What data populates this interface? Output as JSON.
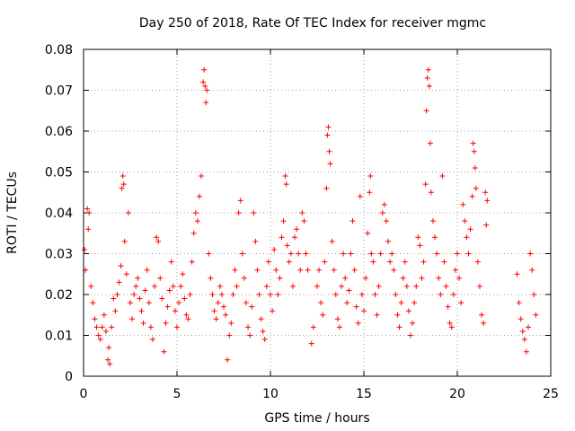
{
  "chart_data": {
    "type": "scatter",
    "title": "Day 250 of 2018, Rate Of TEC Index for receiver mgmc",
    "xlabel": "GPS time / hours",
    "ylabel": "ROTI / TECUs",
    "xlim": [
      0,
      25
    ],
    "ylim": [
      0,
      0.08
    ],
    "x_ticks": [
      0,
      5,
      10,
      15,
      20,
      25
    ],
    "x_tick_labels": [
      "0",
      "5",
      "10",
      "15",
      "20",
      "25"
    ],
    "y_ticks": [
      0,
      0.01,
      0.02,
      0.03,
      0.04,
      0.05,
      0.06,
      0.07,
      0.08
    ],
    "y_tick_labels": [
      "0",
      "0.01",
      "0.02",
      "0.03",
      "0.04",
      "0.05",
      "0.06",
      "0.07",
      "0.08"
    ],
    "grid": true,
    "marker": "+",
    "series": [
      {
        "name": "ROTI",
        "color": "#ff0000",
        "points": [
          [
            0.05,
            0.031
          ],
          [
            0.1,
            0.026
          ],
          [
            0.2,
            0.041
          ],
          [
            0.3,
            0.04
          ],
          [
            0.25,
            0.036
          ],
          [
            0.4,
            0.022
          ],
          [
            0.5,
            0.018
          ],
          [
            0.6,
            0.014
          ],
          [
            0.7,
            0.012
          ],
          [
            0.8,
            0.01
          ],
          [
            0.9,
            0.009
          ],
          [
            1.0,
            0.012
          ],
          [
            1.1,
            0.015
          ],
          [
            1.2,
            0.011
          ],
          [
            1.3,
            0.004
          ],
          [
            1.35,
            0.007
          ],
          [
            1.4,
            0.003
          ],
          [
            1.5,
            0.012
          ],
          [
            1.6,
            0.019
          ],
          [
            1.7,
            0.016
          ],
          [
            1.8,
            0.02
          ],
          [
            1.9,
            0.023
          ],
          [
            2.0,
            0.027
          ],
          [
            2.05,
            0.046
          ],
          [
            2.1,
            0.049
          ],
          [
            2.15,
            0.047
          ],
          [
            2.2,
            0.033
          ],
          [
            2.3,
            0.025
          ],
          [
            2.4,
            0.04
          ],
          [
            2.5,
            0.018
          ],
          [
            2.6,
            0.014
          ],
          [
            2.7,
            0.02
          ],
          [
            2.8,
            0.022
          ],
          [
            2.9,
            0.024
          ],
          [
            3.0,
            0.019
          ],
          [
            3.1,
            0.016
          ],
          [
            3.2,
            0.013
          ],
          [
            3.3,
            0.021
          ],
          [
            3.4,
            0.026
          ],
          [
            3.5,
            0.018
          ],
          [
            3.6,
            0.012
          ],
          [
            3.7,
            0.009
          ],
          [
            3.8,
            0.022
          ],
          [
            3.9,
            0.034
          ],
          [
            4.0,
            0.033
          ],
          [
            4.1,
            0.024
          ],
          [
            4.2,
            0.019
          ],
          [
            4.3,
            0.006
          ],
          [
            4.4,
            0.013
          ],
          [
            4.5,
            0.017
          ],
          [
            4.6,
            0.021
          ],
          [
            4.7,
            0.028
          ],
          [
            4.8,
            0.022
          ],
          [
            4.9,
            0.016
          ],
          [
            5.0,
            0.012
          ],
          [
            5.1,
            0.018
          ],
          [
            5.2,
            0.022
          ],
          [
            5.3,
            0.025
          ],
          [
            5.4,
            0.019
          ],
          [
            5.5,
            0.015
          ],
          [
            5.6,
            0.014
          ],
          [
            5.7,
            0.02
          ],
          [
            5.8,
            0.028
          ],
          [
            5.9,
            0.035
          ],
          [
            6.0,
            0.04
          ],
          [
            6.1,
            0.038
          ],
          [
            6.2,
            0.044
          ],
          [
            6.3,
            0.049
          ],
          [
            6.4,
            0.072
          ],
          [
            6.45,
            0.075
          ],
          [
            6.5,
            0.071
          ],
          [
            6.55,
            0.067
          ],
          [
            6.6,
            0.07
          ],
          [
            6.7,
            0.03
          ],
          [
            6.8,
            0.024
          ],
          [
            6.9,
            0.02
          ],
          [
            7.0,
            0.016
          ],
          [
            7.1,
            0.014
          ],
          [
            7.2,
            0.018
          ],
          [
            7.3,
            0.022
          ],
          [
            7.4,
            0.02
          ],
          [
            7.5,
            0.017
          ],
          [
            7.6,
            0.015
          ],
          [
            7.7,
            0.004
          ],
          [
            7.8,
            0.01
          ],
          [
            7.9,
            0.013
          ],
          [
            8.0,
            0.02
          ],
          [
            8.1,
            0.026
          ],
          [
            8.2,
            0.022
          ],
          [
            8.3,
            0.04
          ],
          [
            8.4,
            0.043
          ],
          [
            8.5,
            0.03
          ],
          [
            8.6,
            0.024
          ],
          [
            8.7,
            0.018
          ],
          [
            8.8,
            0.012
          ],
          [
            8.9,
            0.01
          ],
          [
            9.0,
            0.017
          ],
          [
            9.1,
            0.04
          ],
          [
            9.2,
            0.033
          ],
          [
            9.3,
            0.026
          ],
          [
            9.4,
            0.02
          ],
          [
            9.5,
            0.014
          ],
          [
            9.6,
            0.011
          ],
          [
            9.7,
            0.009
          ],
          [
            9.8,
            0.022
          ],
          [
            9.9,
            0.028
          ],
          [
            10.0,
            0.02
          ],
          [
            10.1,
            0.016
          ],
          [
            10.2,
            0.031
          ],
          [
            10.3,
            0.026
          ],
          [
            10.4,
            0.02
          ],
          [
            10.5,
            0.024
          ],
          [
            10.6,
            0.034
          ],
          [
            10.7,
            0.038
          ],
          [
            10.8,
            0.049
          ],
          [
            10.85,
            0.047
          ],
          [
            10.9,
            0.032
          ],
          [
            11.0,
            0.028
          ],
          [
            11.1,
            0.03
          ],
          [
            11.2,
            0.022
          ],
          [
            11.3,
            0.034
          ],
          [
            11.4,
            0.036
          ],
          [
            11.5,
            0.03
          ],
          [
            11.6,
            0.026
          ],
          [
            11.7,
            0.04
          ],
          [
            11.8,
            0.038
          ],
          [
            11.9,
            0.03
          ],
          [
            12.0,
            0.026
          ],
          [
            12.2,
            0.008
          ],
          [
            12.3,
            0.012
          ],
          [
            12.5,
            0.022
          ],
          [
            12.6,
            0.026
          ],
          [
            12.7,
            0.018
          ],
          [
            12.8,
            0.015
          ],
          [
            12.9,
            0.028
          ],
          [
            13.0,
            0.046
          ],
          [
            13.05,
            0.059
          ],
          [
            13.1,
            0.061
          ],
          [
            13.15,
            0.055
          ],
          [
            13.2,
            0.052
          ],
          [
            13.3,
            0.033
          ],
          [
            13.4,
            0.026
          ],
          [
            13.5,
            0.02
          ],
          [
            13.6,
            0.014
          ],
          [
            13.7,
            0.012
          ],
          [
            13.8,
            0.022
          ],
          [
            13.9,
            0.03
          ],
          [
            14.0,
            0.024
          ],
          [
            14.1,
            0.018
          ],
          [
            14.2,
            0.021
          ],
          [
            14.3,
            0.03
          ],
          [
            14.4,
            0.038
          ],
          [
            14.5,
            0.026
          ],
          [
            14.6,
            0.017
          ],
          [
            14.7,
            0.013
          ],
          [
            14.8,
            0.044
          ],
          [
            14.9,
            0.02
          ],
          [
            15.0,
            0.016
          ],
          [
            15.1,
            0.024
          ],
          [
            15.2,
            0.035
          ],
          [
            15.3,
            0.045
          ],
          [
            15.35,
            0.049
          ],
          [
            15.4,
            0.03
          ],
          [
            15.5,
            0.028
          ],
          [
            15.6,
            0.02
          ],
          [
            15.7,
            0.015
          ],
          [
            15.8,
            0.022
          ],
          [
            15.9,
            0.03
          ],
          [
            16.0,
            0.04
          ],
          [
            16.1,
            0.042
          ],
          [
            16.2,
            0.038
          ],
          [
            16.3,
            0.033
          ],
          [
            16.4,
            0.028
          ],
          [
            16.5,
            0.03
          ],
          [
            16.6,
            0.026
          ],
          [
            16.7,
            0.02
          ],
          [
            16.8,
            0.015
          ],
          [
            16.9,
            0.012
          ],
          [
            17.0,
            0.018
          ],
          [
            17.1,
            0.024
          ],
          [
            17.2,
            0.028
          ],
          [
            17.3,
            0.022
          ],
          [
            17.4,
            0.016
          ],
          [
            17.5,
            0.01
          ],
          [
            17.6,
            0.013
          ],
          [
            17.7,
            0.018
          ],
          [
            17.8,
            0.022
          ],
          [
            17.9,
            0.034
          ],
          [
            18.0,
            0.032
          ],
          [
            18.1,
            0.024
          ],
          [
            18.2,
            0.028
          ],
          [
            18.3,
            0.047
          ],
          [
            18.35,
            0.065
          ],
          [
            18.4,
            0.073
          ],
          [
            18.45,
            0.075
          ],
          [
            18.5,
            0.071
          ],
          [
            18.55,
            0.057
          ],
          [
            18.6,
            0.045
          ],
          [
            18.7,
            0.038
          ],
          [
            18.8,
            0.034
          ],
          [
            18.9,
            0.03
          ],
          [
            19.0,
            0.024
          ],
          [
            19.1,
            0.02
          ],
          [
            19.2,
            0.049
          ],
          [
            19.3,
            0.028
          ],
          [
            19.4,
            0.022
          ],
          [
            19.5,
            0.017
          ],
          [
            19.6,
            0.013
          ],
          [
            19.7,
            0.012
          ],
          [
            19.8,
            0.02
          ],
          [
            19.9,
            0.026
          ],
          [
            20.0,
            0.03
          ],
          [
            20.1,
            0.024
          ],
          [
            20.2,
            0.018
          ],
          [
            20.3,
            0.042
          ],
          [
            20.4,
            0.038
          ],
          [
            20.5,
            0.034
          ],
          [
            20.6,
            0.03
          ],
          [
            20.7,
            0.036
          ],
          [
            20.8,
            0.044
          ],
          [
            20.85,
            0.057
          ],
          [
            20.9,
            0.055
          ],
          [
            20.95,
            0.051
          ],
          [
            21.0,
            0.046
          ],
          [
            21.1,
            0.028
          ],
          [
            21.2,
            0.022
          ],
          [
            21.3,
            0.015
          ],
          [
            21.4,
            0.013
          ],
          [
            21.5,
            0.045
          ],
          [
            21.55,
            0.037
          ],
          [
            21.6,
            0.043
          ],
          [
            23.2,
            0.025
          ],
          [
            23.3,
            0.018
          ],
          [
            23.4,
            0.014
          ],
          [
            23.5,
            0.011
          ],
          [
            23.6,
            0.009
          ],
          [
            23.7,
            0.006
          ],
          [
            23.8,
            0.012
          ],
          [
            23.9,
            0.03
          ],
          [
            24.0,
            0.026
          ],
          [
            24.1,
            0.02
          ],
          [
            24.2,
            0.015
          ]
        ]
      }
    ]
  }
}
